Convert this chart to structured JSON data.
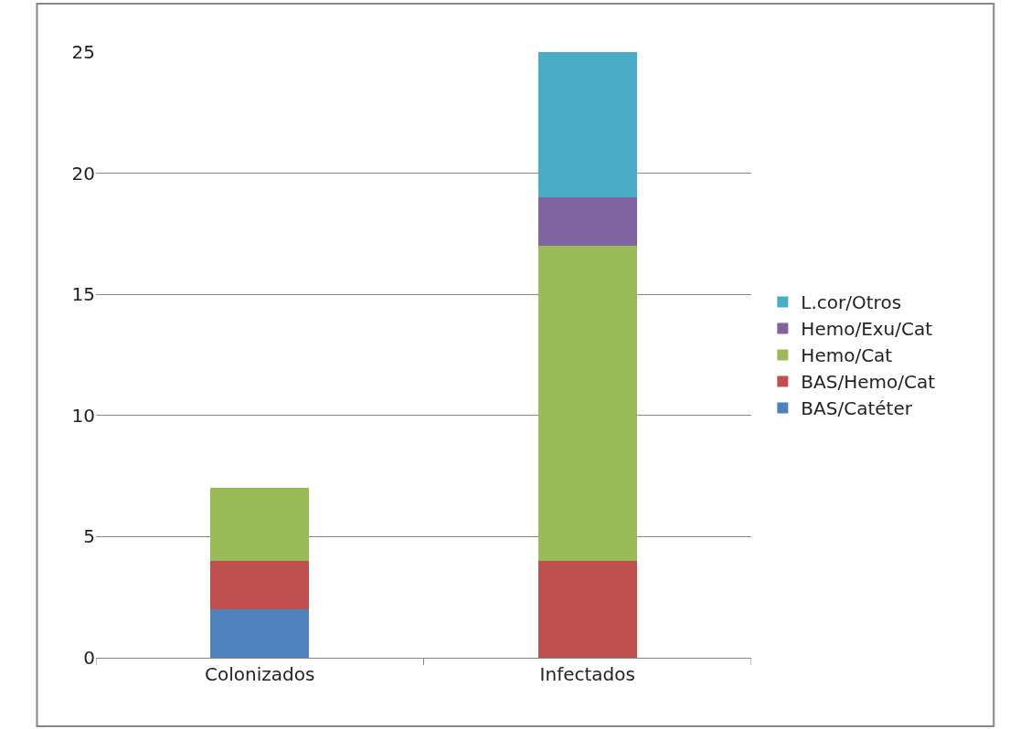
{
  "chart_data": {
    "type": "bar",
    "stacked": true,
    "categories": [
      "Colonizados",
      "Infectados"
    ],
    "series": [
      {
        "name": "BAS/Catéter",
        "color": "#4f81bd",
        "values": [
          2,
          0
        ]
      },
      {
        "name": "BAS/Hemo/Cat",
        "color": "#c0504d",
        "values": [
          2,
          4
        ]
      },
      {
        "name": "Hemo/Cat",
        "color": "#9bbb59",
        "values": [
          3,
          13
        ]
      },
      {
        "name": "Hemo/Exu/Cat",
        "color": "#8064a2",
        "values": [
          0,
          2
        ]
      },
      {
        "name": "L.cor/Otros",
        "color": "#4bacc6",
        "values": [
          0,
          6
        ]
      }
    ],
    "ylim": [
      0,
      25
    ],
    "yticks": [
      0,
      5,
      10,
      15,
      20,
      25
    ],
    "grid": "y",
    "legend": "right"
  }
}
